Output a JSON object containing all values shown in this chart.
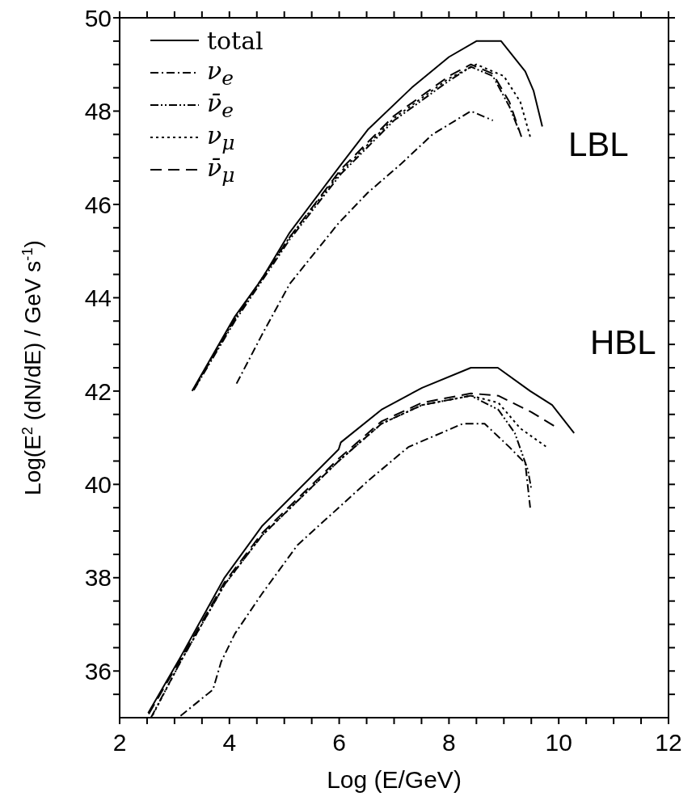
{
  "chart_data": {
    "type": "line",
    "xlabel": "Log (E/GeV)",
    "ylabel": "Log(E$^{2}$ (dN/dE) / GeV s$^{-1}$)",
    "xlim": [
      2,
      12
    ],
    "ylim": [
      35,
      50
    ],
    "xticks": [
      2,
      {
        "value": 2.5,
        "label": null
      },
      {
        "value": 3,
        "label": null
      },
      {
        "value": 3.5,
        "label": null
      },
      4,
      {
        "value": 4.5,
        "label": null
      },
      {
        "value": 5,
        "label": null
      },
      {
        "value": 5.5,
        "label": null
      },
      6,
      {
        "value": 6.5,
        "label": null
      },
      {
        "value": 7,
        "label": null
      },
      {
        "value": 7.5,
        "label": null
      },
      8,
      {
        "value": 8.5,
        "label": null
      },
      {
        "value": 9,
        "label": null
      },
      {
        "value": 9.5,
        "label": null
      },
      10,
      {
        "value": 10.5,
        "label": null
      },
      {
        "value": 11,
        "label": null
      },
      {
        "value": 11.5,
        "label": null
      },
      12
    ],
    "yticks": [
      {
        "value": 35.5,
        "label": null
      },
      36,
      {
        "value": 36.5,
        "label": null
      },
      {
        "value": 37,
        "label": null
      },
      {
        "value": 37.5,
        "label": null
      },
      38,
      {
        "value": 38.5,
        "label": null
      },
      {
        "value": 39,
        "label": null
      },
      {
        "value": 39.5,
        "label": null
      },
      40,
      {
        "value": 40.5,
        "label": null
      },
      {
        "value": 41,
        "label": null
      },
      {
        "value": 41.5,
        "label": null
      },
      42,
      {
        "value": 42.5,
        "label": null
      },
      {
        "value": 43,
        "label": null
      },
      {
        "value": 43.5,
        "label": null
      },
      44,
      {
        "value": 44.5,
        "label": null
      },
      {
        "value": 45,
        "label": null
      },
      {
        "value": 45.5,
        "label": null
      },
      46,
      {
        "value": 46.5,
        "label": null
      },
      {
        "value": 47,
        "label": null
      },
      {
        "value": 47.5,
        "label": null
      },
      48,
      {
        "value": 48.5,
        "label": null
      },
      {
        "value": 49,
        "label": null
      },
      {
        "value": 49.5,
        "label": null
      },
      50
    ],
    "legend": "top left",
    "marker": "none",
    "annotations": [
      "LBL",
      "HBL"
    ],
    "series": [
      {
        "name": "total",
        "color": "#000000",
        "line_style": "solid",
        "x": [
          3.32,
          4.1,
          4.59,
          5.1,
          6.03,
          6.52,
          7.32,
          8.0,
          8.5,
          8.95,
          9.39,
          9.54,
          9.7
        ],
        "values": [
          42.0,
          43.6,
          44.4,
          45.4,
          46.85,
          47.6,
          48.5,
          49.16,
          49.5,
          49.5,
          48.85,
          48.44,
          47.67
        ]
      },
      {
        "name": "ν$_{e}$",
        "color": "#000000",
        "line_style": "dashdot",
        "x": [
          4.13,
          4.59,
          5.1,
          5.99,
          6.52,
          7.11,
          7.7,
          8.4,
          8.8
        ],
        "values": [
          42.16,
          43.2,
          44.3,
          45.6,
          46.25,
          46.85,
          47.5,
          48.0,
          47.8
        ]
      },
      {
        "name": "ν̄$_{e}$",
        "color": "#000000",
        "line_style": "dashdotdot",
        "x": [
          3.35,
          4.1,
          5.1,
          6.03,
          7.0,
          8.0,
          8.4,
          8.8,
          9.1,
          9.27
        ],
        "values": [
          42.02,
          43.5,
          45.25,
          46.65,
          47.8,
          48.65,
          48.95,
          48.75,
          48.1,
          47.6
        ]
      },
      {
        "name": "ν$_{μ}$",
        "color": "#000000",
        "line_style": "dotted",
        "x": [
          3.34,
          4.1,
          5.1,
          6.03,
          7.0,
          8.0,
          8.5,
          9.0,
          9.3,
          9.48
        ],
        "values": [
          42.03,
          43.55,
          45.3,
          46.7,
          47.85,
          48.7,
          49.0,
          48.75,
          48.2,
          47.45
        ]
      },
      {
        "name": "ν̄$_{μ}$",
        "color": "#000000",
        "line_style": "dashed",
        "x": [
          3.36,
          4.1,
          5.1,
          6.03,
          7.0,
          8.0,
          8.4,
          8.8,
          9.1,
          9.32
        ],
        "values": [
          42.05,
          43.55,
          45.3,
          46.75,
          47.9,
          48.75,
          49.0,
          48.8,
          48.2,
          47.45
        ]
      },
      {
        "color": "#000000",
        "line_style": "solid",
        "x": [
          2.52,
          3.11,
          3.91,
          4.59,
          5.99,
          6.03,
          6.77,
          7.51,
          8.4,
          8.89,
          9.48,
          9.88,
          10.28
        ],
        "values": [
          35.1,
          36.3,
          38.0,
          39.1,
          40.75,
          40.9,
          41.6,
          42.07,
          42.5,
          42.5,
          42.0,
          41.7,
          41.1
        ]
      },
      {
        "color": "#000000",
        "line_style": "dashdot",
        "x": [
          3.11,
          3.7,
          3.85,
          4.1,
          4.59,
          5.24,
          5.99,
          6.52,
          7.26,
          8.25,
          8.65,
          9.1,
          9.39,
          9.48
        ],
        "values": [
          35.04,
          35.6,
          36.2,
          36.8,
          37.65,
          38.7,
          39.5,
          40.07,
          40.8,
          41.3,
          41.3,
          40.8,
          40.45,
          39.5
        ]
      },
      {
        "color": "#000000",
        "line_style": "dashdotdot",
        "x": [
          2.57,
          3.11,
          3.91,
          4.59,
          5.99,
          6.77,
          7.51,
          8.4,
          8.9,
          9.2,
          9.44,
          9.5
        ],
        "values": [
          35.0,
          36.2,
          37.85,
          38.9,
          40.5,
          41.3,
          41.7,
          41.9,
          41.6,
          41.1,
          40.3,
          39.9
        ]
      },
      {
        "color": "#000000",
        "line_style": "dotted",
        "x": [
          2.6,
          3.11,
          3.91,
          4.59,
          5.99,
          6.77,
          7.51,
          8.4,
          8.9,
          9.3,
          9.78
        ],
        "values": [
          35.05,
          36.2,
          37.85,
          38.9,
          40.5,
          41.3,
          41.7,
          41.9,
          41.75,
          41.2,
          40.8
        ]
      },
      {
        "color": "#000000",
        "line_style": "dashed",
        "x": [
          2.53,
          3.11,
          3.91,
          4.59,
          5.99,
          6.77,
          7.51,
          8.4,
          8.9,
          9.5,
          9.99
        ],
        "values": [
          35.08,
          36.25,
          37.9,
          38.95,
          40.55,
          41.35,
          41.75,
          41.95,
          41.9,
          41.55,
          41.2
        ]
      }
    ]
  }
}
